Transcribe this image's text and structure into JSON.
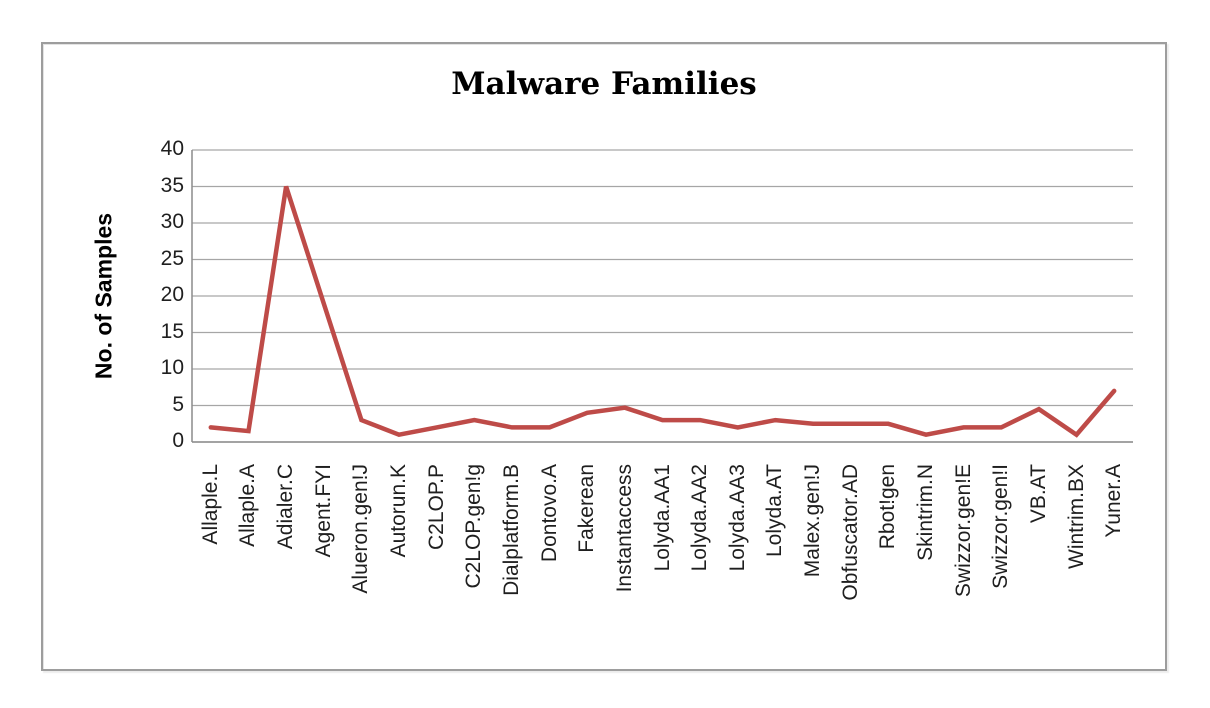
{
  "chart_data": {
    "type": "line",
    "title": "Malware Families",
    "ylabel": "No. of Samples",
    "xlabel": "",
    "categories": [
      "Allaple.L",
      "Allaple.A",
      "Adialer.C",
      "Agent.FYI",
      "Alueron.gen!J",
      "Autorun.K",
      "C2LOP.P",
      "C2LOP.gen!g",
      "Dialplatform.B",
      "Dontovo.A",
      "Fakerean",
      "Instantaccess",
      "Lolyda.AA1",
      "Lolyda.AA2",
      "Lolyda.AA3",
      "Lolyda.AT",
      "Malex.gen!J",
      "Obfuscator.AD",
      "Rbot!gen",
      "Skintrim.N",
      "Swizzor.gen!E",
      "Swizzor.gen!I",
      "VB.AT",
      "Wintrim.BX",
      "Yuner.A"
    ],
    "values": [
      2,
      1.5,
      35,
      19,
      3,
      1,
      2,
      3,
      2,
      2,
      4,
      4.7,
      3,
      3,
      2,
      3,
      2.5,
      2.5,
      2.5,
      1,
      2,
      2,
      4.5,
      1,
      7
    ],
    "ylim": [
      0,
      40
    ],
    "yticks": [
      0,
      5,
      10,
      15,
      20,
      25,
      30,
      35,
      40
    ],
    "grid": "horizontal",
    "legend": "none",
    "line_color": "#BE4B48",
    "gridline_color": "#A6A6A6",
    "axis_color": "#8C8C8C",
    "tick_text_color": "#1F1F1F",
    "title_color": "#000000",
    "frame_border_color": "#9D9D9D"
  }
}
